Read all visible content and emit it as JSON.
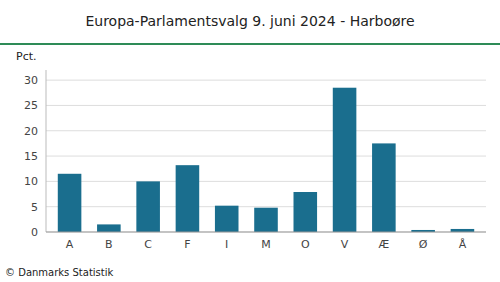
{
  "chart_data": {
    "type": "bar",
    "title": "Europa-Parlamentsvalg 9. juni 2024 - Harboøre",
    "ylabel": "Pct.",
    "annotations": [
      "© Danmarks Statistik"
    ],
    "categories": [
      "A",
      "B",
      "C",
      "F",
      "I",
      "M",
      "O",
      "V",
      "Æ",
      "Ø",
      "Å"
    ],
    "values": [
      11.5,
      1.5,
      10.0,
      13.2,
      5.2,
      4.8,
      7.9,
      28.5,
      17.5,
      0.4,
      0.6
    ],
    "color": "#1a6e8e",
    "ylim": [
      0,
      32
    ],
    "yticks": [
      0,
      5,
      10,
      15,
      20,
      25,
      30
    ],
    "grid": true
  }
}
